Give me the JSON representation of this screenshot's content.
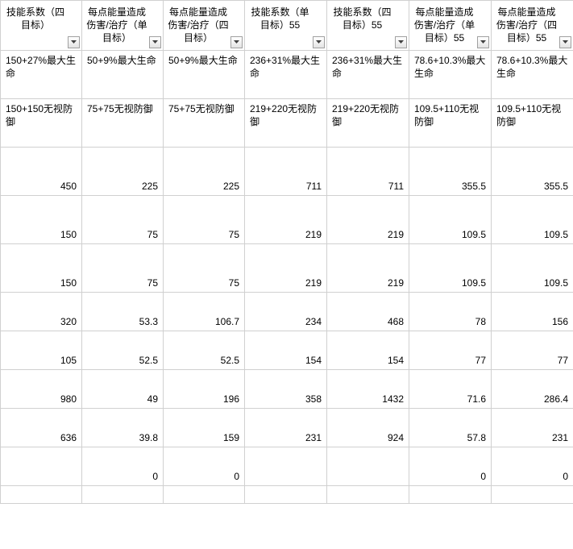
{
  "columns": [
    {
      "header": "技能系数（四目标）",
      "width": 101
    },
    {
      "header": "每点能量造成伤害/治疗（单目标）",
      "width": 101
    },
    {
      "header": "每点能量造成伤害/治疗（四目标）",
      "width": 101
    },
    {
      "header": "技能系数（单目标）55",
      "width": 102
    },
    {
      "header": "技能系数（四目标）55",
      "width": 102
    },
    {
      "header": "每点能量造成伤害/治疗（单目标）55",
      "width": 102
    },
    {
      "header": "每点能量造成伤害/治疗（四目标）55",
      "width": 102
    }
  ],
  "rows": [
    {
      "type": "txt",
      "cells": [
        "150+27%最大生命",
        "50+9%最大生命",
        "50+9%最大生命",
        "236+31%最大生命",
        "236+31%最大生命",
        "78.6+10.3%最大生命",
        "78.6+10.3%最大生命"
      ]
    },
    {
      "type": "txt",
      "cells": [
        "150+150无视防御",
        "75+75无视防御",
        "75+75无视防御",
        "219+220无视防御",
        "219+220无视防御",
        "109.5+110无视防御",
        "109.5+110无视防御"
      ]
    },
    {
      "type": "num",
      "cells": [
        "450",
        "225",
        "225",
        "711",
        "711",
        "355.5",
        "355.5"
      ]
    },
    {
      "type": "num",
      "cells": [
        "150",
        "75",
        "75",
        "219",
        "219",
        "109.5",
        "109.5"
      ]
    },
    {
      "type": "num",
      "cells": [
        "150",
        "75",
        "75",
        "219",
        "219",
        "109.5",
        "109.5"
      ]
    },
    {
      "type": "num",
      "short": true,
      "cells": [
        "320",
        "53.3",
        "106.7",
        "234",
        "468",
        "78",
        "156"
      ]
    },
    {
      "type": "num",
      "short": true,
      "cells": [
        "105",
        "52.5",
        "52.5",
        "154",
        "154",
        "77",
        "77"
      ]
    },
    {
      "type": "num",
      "short": true,
      "cells": [
        "980",
        "49",
        "196",
        "358",
        "1432",
        "71.6",
        "286.4"
      ]
    },
    {
      "type": "num",
      "short": true,
      "cells": [
        "636",
        "39.8",
        "159",
        "231",
        "924",
        "57.8",
        "231"
      ]
    },
    {
      "type": "num",
      "short": true,
      "cells": [
        "",
        "0",
        "0",
        "",
        "",
        "0",
        "0"
      ]
    },
    {
      "type": "num",
      "tiny": true,
      "cells": [
        "",
        "",
        "",
        "",
        "",
        "",
        ""
      ]
    }
  ]
}
